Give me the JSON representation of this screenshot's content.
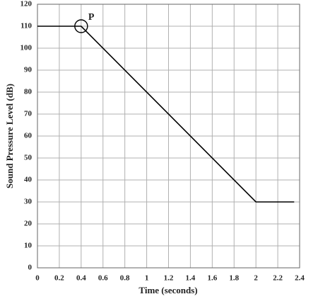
{
  "chart_data": {
    "type": "line",
    "xlabel": "Time (seconds)",
    "ylabel": "Sound Pressure Level (dB)",
    "x": [
      0,
      0.4,
      2,
      2.35
    ],
    "values": [
      110,
      110,
      30,
      30
    ],
    "color": "#000000",
    "xlim": [
      0,
      2.4
    ],
    "xticks": [
      0,
      0.2,
      0.4,
      0.6,
      0.8,
      1,
      1.2,
      1.4,
      1.6,
      1.8,
      2,
      2.2,
      2.4
    ],
    "ylim": [
      0,
      120
    ],
    "yticks": [
      0,
      10,
      20,
      30,
      40,
      50,
      60,
      70,
      80,
      90,
      100,
      110,
      120
    ],
    "grid": true,
    "annotations": [
      {
        "text": "P",
        "x": 0.4,
        "y": 110
      }
    ]
  }
}
